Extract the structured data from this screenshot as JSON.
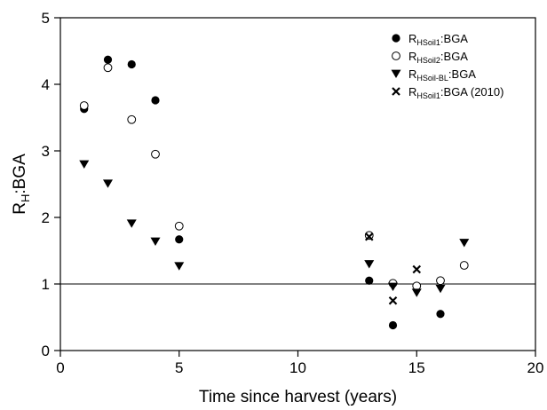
{
  "chart_data": {
    "type": "scatter",
    "xlabel": "Time since harvest (years)",
    "ylabel": {
      "main": "R",
      "sub": "H",
      "rest": ":BGA"
    },
    "xlim": [
      0,
      20
    ],
    "ylim": [
      0,
      5
    ],
    "xticks": [
      0,
      5,
      10,
      15,
      20
    ],
    "yticks": [
      0,
      1,
      2,
      3,
      4,
      5
    ],
    "reference_line_y": 1,
    "legend_position": "top-right",
    "series": [
      {
        "name": "R HSoil1 :BGA",
        "label": {
          "main": "R",
          "sub": "HSoil1",
          "rest": ":BGA"
        },
        "marker": "filled-circle",
        "points": [
          [
            1,
            3.63
          ],
          [
            2,
            4.37
          ],
          [
            3,
            4.3
          ],
          [
            4,
            3.76
          ],
          [
            5,
            1.67
          ],
          [
            13,
            1.05
          ],
          [
            14,
            0.38
          ],
          [
            16,
            0.55
          ]
        ]
      },
      {
        "name": "R HSoil2 :BGA",
        "label": {
          "main": "R",
          "sub": "HSoil2",
          "rest": ":BGA"
        },
        "marker": "open-circle",
        "points": [
          [
            1,
            3.68
          ],
          [
            2,
            4.25
          ],
          [
            3,
            3.47
          ],
          [
            4,
            2.95
          ],
          [
            5,
            1.87
          ],
          [
            13,
            1.73
          ],
          [
            14,
            1.01
          ],
          [
            15,
            0.97
          ],
          [
            16,
            1.05
          ],
          [
            17,
            1.28
          ]
        ]
      },
      {
        "name": "R HSoil-BL :BGA",
        "label": {
          "main": "R",
          "sub": "HSoil-BL",
          "rest": ":BGA"
        },
        "marker": "triangle-down",
        "points": [
          [
            1,
            2.8
          ],
          [
            2,
            2.51
          ],
          [
            3,
            1.91
          ],
          [
            4,
            1.64
          ],
          [
            5,
            1.27
          ],
          [
            13,
            1.3
          ],
          [
            14,
            0.96
          ],
          [
            15,
            0.87
          ],
          [
            16,
            0.93
          ],
          [
            17,
            1.62
          ]
        ]
      },
      {
        "name": "R HSoil1 :BGA (2010)",
        "label": {
          "main": "R",
          "sub": "HSoil1",
          "rest": ":BGA (2010)"
        },
        "marker": "x",
        "points": [
          [
            13,
            1.71
          ],
          [
            14,
            0.75
          ],
          [
            15,
            1.22
          ]
        ]
      }
    ]
  }
}
